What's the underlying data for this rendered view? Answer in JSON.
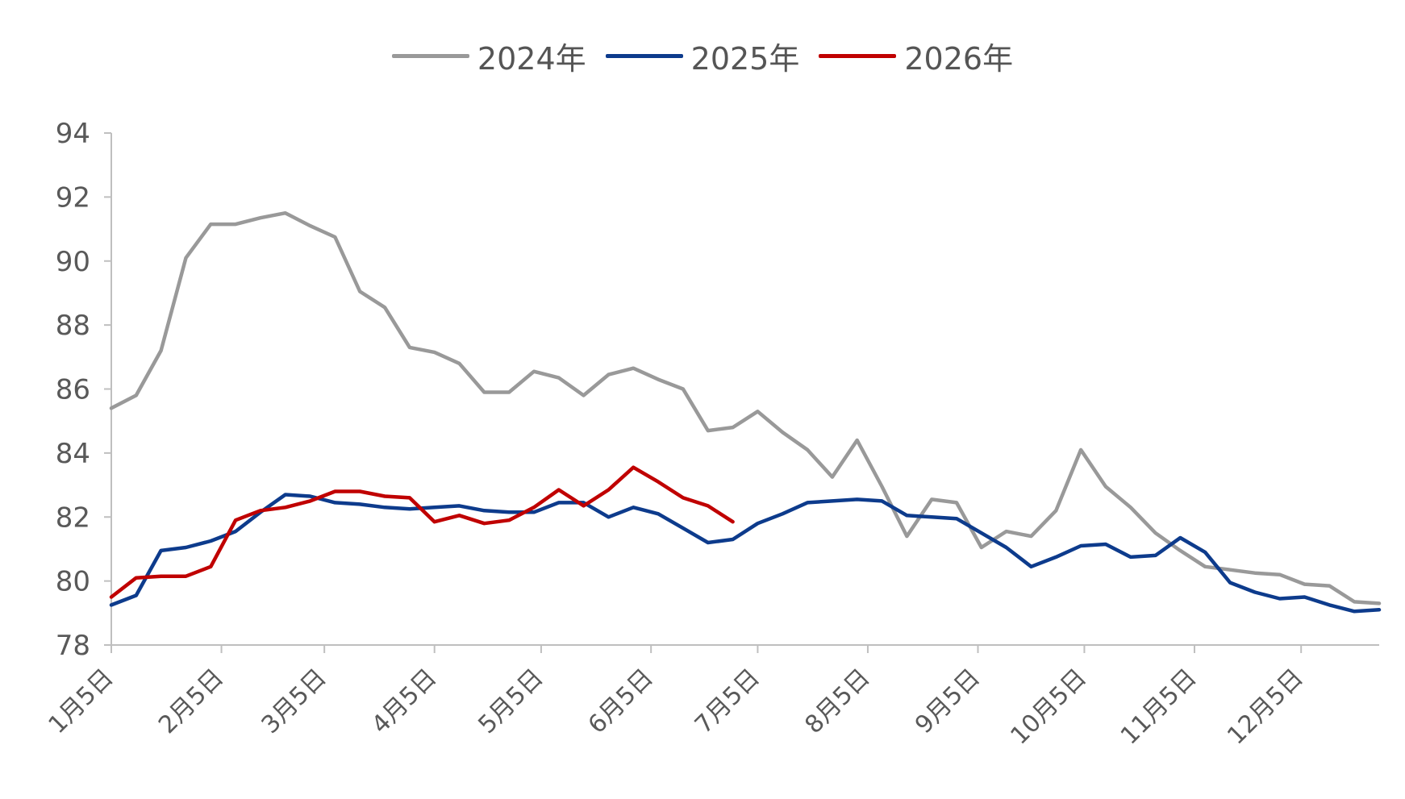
{
  "chart_data": {
    "type": "line",
    "title": "",
    "xlabel": "",
    "ylabel": "",
    "ylim": [
      78,
      94
    ],
    "yticks": [
      78,
      80,
      82,
      84,
      86,
      88,
      90,
      92,
      94
    ],
    "x_tick_labels": [
      "1月5日",
      "2月5日",
      "3月5日",
      "4月5日",
      "5月5日",
      "6月5日",
      "7月5日",
      "8月5日",
      "9月5日",
      "10月5日",
      "11月5日",
      "12月5日"
    ],
    "legend_position": "top-center",
    "grid": false,
    "series": [
      {
        "name": "2024年",
        "color": "#999999",
        "values": [
          85.4,
          85.8,
          87.2,
          90.1,
          91.15,
          91.15,
          91.35,
          91.5,
          91.1,
          90.75,
          89.05,
          88.55,
          87.3,
          87.15,
          86.8,
          85.9,
          85.9,
          86.55,
          86.35,
          85.8,
          86.45,
          86.65,
          86.3,
          86.0,
          84.7,
          84.8,
          85.3,
          84.65,
          84.1,
          83.25,
          84.4,
          82.95,
          81.4,
          82.55,
          82.45,
          81.05,
          81.55,
          81.4,
          82.2,
          84.1,
          82.95,
          82.3,
          81.5,
          80.95,
          80.45,
          80.35,
          80.25,
          80.2,
          79.9,
          79.85,
          79.35,
          79.3
        ]
      },
      {
        "name": "2025年",
        "color": "#0d3b8c",
        "values": [
          79.25,
          79.55,
          80.95,
          81.05,
          81.25,
          81.55,
          82.15,
          82.7,
          82.65,
          82.45,
          82.4,
          82.3,
          82.25,
          82.3,
          82.35,
          82.2,
          82.15,
          82.15,
          82.45,
          82.45,
          82.0,
          82.3,
          82.1,
          81.65,
          81.2,
          81.3,
          81.8,
          82.1,
          82.45,
          82.5,
          82.55,
          82.5,
          82.05,
          82.0,
          81.95,
          81.5,
          81.05,
          80.45,
          80.75,
          81.1,
          81.15,
          80.75,
          80.8,
          81.35,
          80.9,
          79.95,
          79.65,
          79.45,
          79.5,
          79.25,
          79.05,
          79.1
        ]
      },
      {
        "name": "2026年",
        "color": "#c00000",
        "values": [
          79.5,
          80.1,
          80.15,
          80.15,
          80.45,
          81.9,
          82.2,
          82.3,
          82.5,
          82.8,
          82.8,
          82.65,
          82.6,
          81.85,
          82.05,
          81.8,
          81.9,
          82.3,
          82.85,
          82.35,
          82.85,
          83.55,
          83.1,
          82.6,
          82.35,
          81.85
        ]
      }
    ]
  }
}
